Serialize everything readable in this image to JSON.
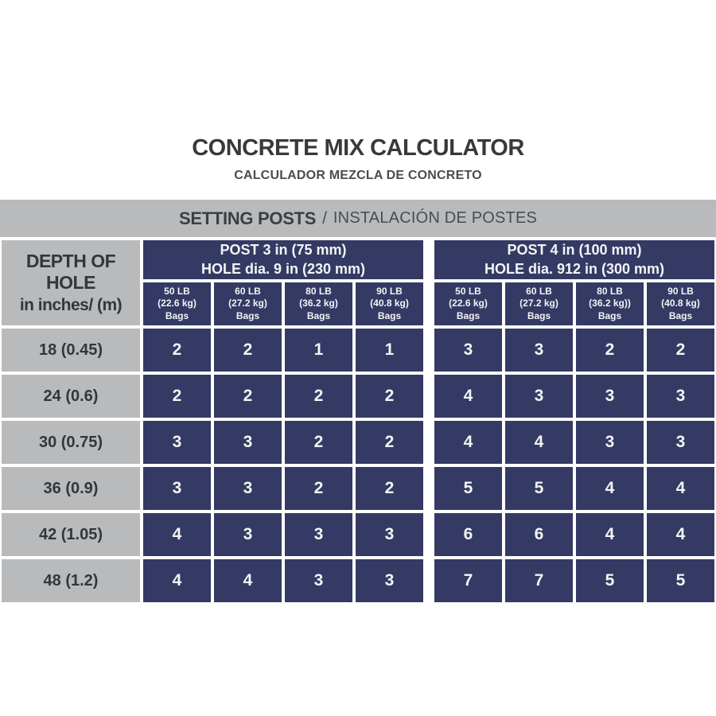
{
  "colors": {
    "navy": "#343a64",
    "silver": "#b8babc",
    "text_dark": "#373a3c",
    "cell_text": "#f4f4f4"
  },
  "chart_data": {
    "type": "table",
    "title": "CONCRETE MIX CALCULATOR",
    "subtitle": "CALCULADOR MEZCLA DE CONCRETO",
    "section_heading": {
      "bold": "SETTING POSTS",
      "separator": "/",
      "regular": "INSTALACIÓN DE POSTES"
    },
    "row_header": {
      "line1": "DEPTH OF HOLE",
      "line2": "in inches/ (m)"
    },
    "groups": [
      {
        "header": "POST 3 in (75 mm)\nHOLE dia. 9 in (230 mm)",
        "columns": [
          "50 LB\n(22.6 kg)\nBags",
          "60 LB\n(27.2 kg)\nBags",
          "80 LB\n(36.2 kg)\nBags",
          "90 LB\n(40.8 kg)\nBags"
        ]
      },
      {
        "header": "POST 4 in (100 mm)\nHOLE dia. 912 in (300 mm)",
        "columns": [
          "50 LB\n(22.6 kg)\nBags",
          "60 LB\n(27.2 kg)\nBags",
          "80 LB\n(36.2 kg))\nBags",
          "90 LB\n(40.8 kg)\nBags"
        ]
      }
    ],
    "rows": [
      {
        "label": "18 (0.45)",
        "values": [
          2,
          2,
          1,
          1,
          3,
          3,
          2,
          2
        ]
      },
      {
        "label": "24 (0.6)",
        "values": [
          2,
          2,
          2,
          2,
          4,
          3,
          3,
          3
        ]
      },
      {
        "label": "30 (0.75)",
        "values": [
          3,
          3,
          2,
          2,
          4,
          4,
          3,
          3
        ]
      },
      {
        "label": "36 (0.9)",
        "values": [
          3,
          3,
          2,
          2,
          5,
          5,
          4,
          4
        ]
      },
      {
        "label": "42 (1.05)",
        "values": [
          4,
          3,
          3,
          3,
          6,
          6,
          4,
          4
        ]
      },
      {
        "label": "48 (1.2)",
        "values": [
          4,
          4,
          3,
          3,
          7,
          7,
          5,
          5
        ]
      }
    ]
  }
}
